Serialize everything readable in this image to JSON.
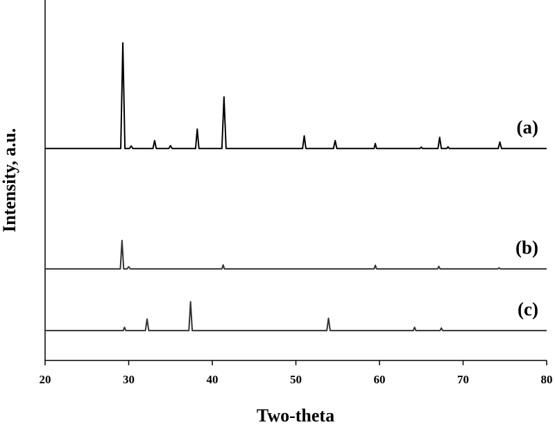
{
  "chart_data": {
    "type": "line",
    "x_label": "Two-theta",
    "y_label": "Intensity, a.u.",
    "xlim": [
      20,
      80
    ],
    "xticks": [
      20,
      30,
      40,
      50,
      60,
      70,
      80
    ],
    "ylim": [
      0,
      100
    ],
    "series": [
      {
        "name": "(a)",
        "color": "#000000",
        "x": [
          20,
          29.05,
          29.3,
          29.55,
          30.1,
          30.3,
          30.5,
          32.9,
          33.1,
          33.3,
          34.8,
          35.0,
          35.2,
          38.0,
          38.2,
          38.4,
          41.15,
          41.4,
          41.65,
          50.8,
          51.0,
          51.2,
          54.5,
          54.7,
          54.9,
          59.35,
          59.5,
          59.65,
          64.85,
          65.0,
          65.15,
          67.0,
          67.2,
          67.4,
          68.05,
          68.2,
          68.35,
          74.2,
          74.4,
          74.6,
          80
        ],
        "values": [
          58.8,
          58.8,
          88.1,
          58.8,
          58.8,
          59.5,
          58.8,
          58.8,
          61.0,
          58.8,
          58.8,
          59.6,
          58.8,
          58.8,
          64.2,
          58.8,
          58.8,
          73.1,
          58.8,
          58.8,
          62.3,
          58.8,
          58.8,
          61.0,
          58.8,
          58.8,
          60.2,
          58.8,
          58.8,
          59.2,
          58.8,
          58.8,
          61.9,
          58.8,
          58.8,
          59.3,
          58.8,
          58.8,
          60.6,
          58.8,
          58.8
        ]
      },
      {
        "name": "(b)",
        "color": "#333333",
        "x": [
          20,
          29.0,
          29.2,
          29.4,
          29.8,
          30.0,
          30.2,
          41.15,
          41.3,
          41.45,
          59.35,
          59.5,
          59.65,
          66.95,
          67.1,
          67.25,
          74.15,
          74.3,
          74.45,
          80
        ],
        "values": [
          25.4,
          25.4,
          33.3,
          25.4,
          25.4,
          26.0,
          25.4,
          25.4,
          26.5,
          25.4,
          25.4,
          26.4,
          25.4,
          25.4,
          26.1,
          25.4,
          25.4,
          25.7,
          25.4,
          25.4
        ]
      },
      {
        "name": "(c)",
        "color": "#333333",
        "x": [
          20,
          29.35,
          29.5,
          29.65,
          32.0,
          32.2,
          32.4,
          37.2,
          37.4,
          37.6,
          53.7,
          53.9,
          54.1,
          64.05,
          64.2,
          64.35,
          67.25,
          67.4,
          67.55,
          80
        ],
        "values": [
          8.3,
          8.3,
          9.2,
          8.3,
          8.3,
          11.5,
          8.3,
          8.3,
          16.3,
          8.3,
          8.3,
          11.7,
          8.3,
          8.3,
          9.2,
          8.3,
          8.3,
          9.0,
          8.3,
          8.3
        ]
      }
    ]
  }
}
